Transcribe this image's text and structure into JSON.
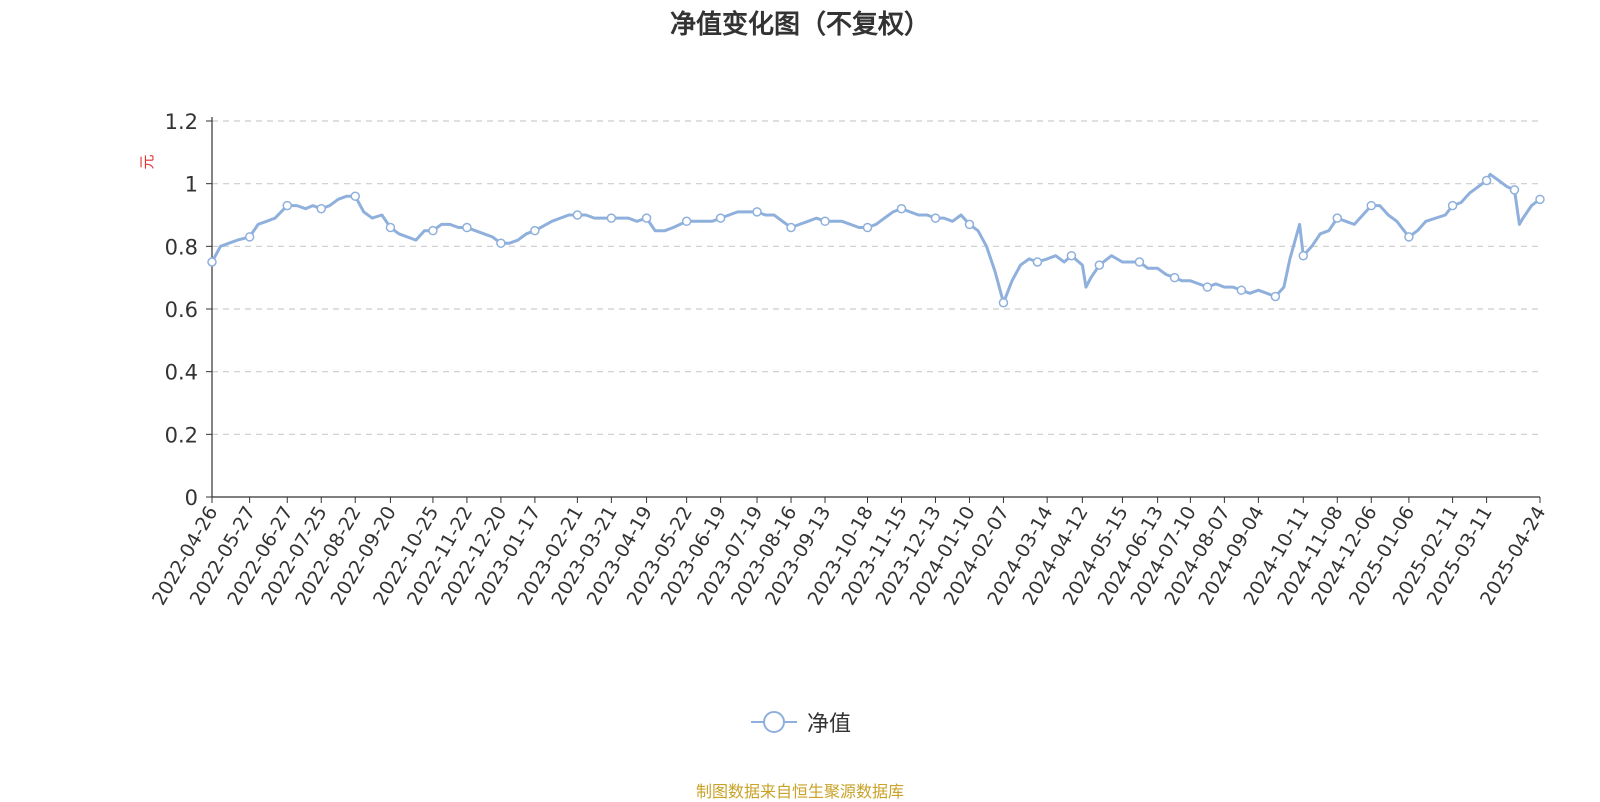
{
  "chart_data": {
    "type": "line",
    "title": "净值变化图（不复权）",
    "ylabel": "元",
    "ylim": [
      0,
      1.2
    ],
    "yticks": [
      "0",
      "0.2",
      "0.4",
      "0.6",
      "0.8",
      "1",
      "1.2"
    ],
    "x_labels": [
      "2022-04-26",
      "2022-05-27",
      "2022-06-27",
      "2022-07-25",
      "2022-08-22",
      "2022-09-20",
      "2022-10-25",
      "2022-11-22",
      "2022-12-20",
      "2023-01-17",
      "2023-02-21",
      "2023-03-21",
      "2023-04-19",
      "2023-05-22",
      "2023-06-19",
      "2023-07-19",
      "2023-08-16",
      "2023-09-13",
      "2023-10-18",
      "2023-11-15",
      "2023-12-13",
      "2024-01-10",
      "2024-02-07",
      "2024-03-14",
      "2024-04-12",
      "2024-05-15",
      "2024-06-13",
      "2024-07-10",
      "2024-08-07",
      "2024-09-04",
      "2024-10-11",
      "2024-11-08",
      "2024-12-06",
      "2025-01-06",
      "2025-02-11",
      "2025-03-11",
      "2025-04-24"
    ],
    "grid": true,
    "legend_position": "bottom-center",
    "series": [
      {
        "name": "净值",
        "color": "#8fb0dc",
        "points": [
          [
            "2022-04-26",
            0.75
          ],
          [
            "2022-05-03",
            0.8
          ],
          [
            "2022-05-10",
            0.81
          ],
          [
            "2022-05-17",
            0.82
          ],
          [
            "2022-05-27",
            0.83
          ],
          [
            "2022-06-03",
            0.87
          ],
          [
            "2022-06-10",
            0.88
          ],
          [
            "2022-06-17",
            0.89
          ],
          [
            "2022-06-27",
            0.93
          ],
          [
            "2022-07-05",
            0.93
          ],
          [
            "2022-07-12",
            0.92
          ],
          [
            "2022-07-18",
            0.93
          ],
          [
            "2022-07-25",
            0.92
          ],
          [
            "2022-08-01",
            0.93
          ],
          [
            "2022-08-08",
            0.95
          ],
          [
            "2022-08-15",
            0.96
          ],
          [
            "2022-08-22",
            0.96
          ],
          [
            "2022-08-29",
            0.91
          ],
          [
            "2022-09-05",
            0.89
          ],
          [
            "2022-09-13",
            0.9
          ],
          [
            "2022-09-20",
            0.86
          ],
          [
            "2022-09-27",
            0.84
          ],
          [
            "2022-10-11",
            0.82
          ],
          [
            "2022-10-18",
            0.85
          ],
          [
            "2022-10-25",
            0.85
          ],
          [
            "2022-11-01",
            0.87
          ],
          [
            "2022-11-08",
            0.87
          ],
          [
            "2022-11-15",
            0.86
          ],
          [
            "2022-11-22",
            0.86
          ],
          [
            "2022-11-29",
            0.85
          ],
          [
            "2022-12-06",
            0.84
          ],
          [
            "2022-12-13",
            0.83
          ],
          [
            "2022-12-20",
            0.81
          ],
          [
            "2022-12-27",
            0.81
          ],
          [
            "2023-01-03",
            0.82
          ],
          [
            "2023-01-10",
            0.84
          ],
          [
            "2023-01-17",
            0.85
          ],
          [
            "2023-01-31",
            0.88
          ],
          [
            "2023-02-07",
            0.89
          ],
          [
            "2023-02-14",
            0.9
          ],
          [
            "2023-02-21",
            0.9
          ],
          [
            "2023-02-28",
            0.9
          ],
          [
            "2023-03-07",
            0.89
          ],
          [
            "2023-03-14",
            0.89
          ],
          [
            "2023-03-21",
            0.89
          ],
          [
            "2023-03-28",
            0.89
          ],
          [
            "2023-04-04",
            0.89
          ],
          [
            "2023-04-11",
            0.88
          ],
          [
            "2023-04-19",
            0.89
          ],
          [
            "2023-04-26",
            0.85
          ],
          [
            "2023-05-04",
            0.85
          ],
          [
            "2023-05-11",
            0.86
          ],
          [
            "2023-05-22",
            0.88
          ],
          [
            "2023-05-29",
            0.88
          ],
          [
            "2023-06-05",
            0.88
          ],
          [
            "2023-06-12",
            0.88
          ],
          [
            "2023-06-19",
            0.89
          ],
          [
            "2023-06-26",
            0.9
          ],
          [
            "2023-07-03",
            0.91
          ],
          [
            "2023-07-10",
            0.91
          ],
          [
            "2023-07-19",
            0.91
          ],
          [
            "2023-07-26",
            0.9
          ],
          [
            "2023-08-02",
            0.9
          ],
          [
            "2023-08-09",
            0.88
          ],
          [
            "2023-08-16",
            0.86
          ],
          [
            "2023-08-23",
            0.87
          ],
          [
            "2023-08-30",
            0.88
          ],
          [
            "2023-09-06",
            0.89
          ],
          [
            "2023-09-13",
            0.88
          ],
          [
            "2023-09-20",
            0.88
          ],
          [
            "2023-09-27",
            0.88
          ],
          [
            "2023-10-11",
            0.86
          ],
          [
            "2023-10-18",
            0.86
          ],
          [
            "2023-10-25",
            0.87
          ],
          [
            "2023-11-01",
            0.89
          ],
          [
            "2023-11-08",
            0.91
          ],
          [
            "2023-11-15",
            0.92
          ],
          [
            "2023-11-22",
            0.91
          ],
          [
            "2023-11-29",
            0.9
          ],
          [
            "2023-12-06",
            0.9
          ],
          [
            "2023-12-13",
            0.89
          ],
          [
            "2023-12-20",
            0.89
          ],
          [
            "2023-12-27",
            0.88
          ],
          [
            "2024-01-03",
            0.9
          ],
          [
            "2024-01-10",
            0.87
          ],
          [
            "2024-01-17",
            0.85
          ],
          [
            "2024-01-24",
            0.8
          ],
          [
            "2024-01-31",
            0.72
          ],
          [
            "2024-02-07",
            0.62
          ],
          [
            "2024-02-14",
            0.69
          ],
          [
            "2024-02-21",
            0.74
          ],
          [
            "2024-02-28",
            0.76
          ],
          [
            "2024-03-06",
            0.75
          ],
          [
            "2024-03-14",
            0.76
          ],
          [
            "2024-03-21",
            0.77
          ],
          [
            "2024-03-28",
            0.75
          ],
          [
            "2024-04-03",
            0.77
          ],
          [
            "2024-04-12",
            0.74
          ],
          [
            "2024-04-15",
            0.67
          ],
          [
            "2024-04-19",
            0.7
          ],
          [
            "2024-04-26",
            0.74
          ],
          [
            "2024-05-06",
            0.77
          ],
          [
            "2024-05-15",
            0.75
          ],
          [
            "2024-05-22",
            0.75
          ],
          [
            "2024-05-29",
            0.75
          ],
          [
            "2024-06-05",
            0.73
          ],
          [
            "2024-06-13",
            0.73
          ],
          [
            "2024-06-20",
            0.71
          ],
          [
            "2024-06-27",
            0.7
          ],
          [
            "2024-07-03",
            0.69
          ],
          [
            "2024-07-10",
            0.69
          ],
          [
            "2024-07-17",
            0.68
          ],
          [
            "2024-07-24",
            0.67
          ],
          [
            "2024-07-31",
            0.68
          ],
          [
            "2024-08-07",
            0.67
          ],
          [
            "2024-08-14",
            0.67
          ],
          [
            "2024-08-21",
            0.66
          ],
          [
            "2024-08-28",
            0.65
          ],
          [
            "2024-09-04",
            0.66
          ],
          [
            "2024-09-11",
            0.65
          ],
          [
            "2024-09-18",
            0.64
          ],
          [
            "2024-09-25",
            0.67
          ],
          [
            "2024-09-30",
            0.76
          ],
          [
            "2024-10-08",
            0.87
          ],
          [
            "2024-10-11",
            0.77
          ],
          [
            "2024-10-18",
            0.8
          ],
          [
            "2024-10-25",
            0.84
          ],
          [
            "2024-11-01",
            0.85
          ],
          [
            "2024-11-08",
            0.89
          ],
          [
            "2024-11-15",
            0.88
          ],
          [
            "2024-11-22",
            0.87
          ],
          [
            "2024-11-29",
            0.9
          ],
          [
            "2024-12-06",
            0.93
          ],
          [
            "2024-12-13",
            0.93
          ],
          [
            "2024-12-20",
            0.9
          ],
          [
            "2024-12-27",
            0.88
          ],
          [
            "2025-01-06",
            0.83
          ],
          [
            "2025-01-13",
            0.85
          ],
          [
            "2025-01-20",
            0.88
          ],
          [
            "2025-02-05",
            0.9
          ],
          [
            "2025-02-11",
            0.93
          ],
          [
            "2025-02-18",
            0.94
          ],
          [
            "2025-02-25",
            0.97
          ],
          [
            "2025-03-04",
            0.99
          ],
          [
            "2025-03-11",
            1.01
          ],
          [
            "2025-03-14",
            1.03
          ],
          [
            "2025-03-21",
            1.01
          ],
          [
            "2025-03-28",
            0.99
          ],
          [
            "2025-04-03",
            0.98
          ],
          [
            "2025-04-07",
            0.87
          ],
          [
            "2025-04-10",
            0.89
          ],
          [
            "2025-04-17",
            0.93
          ],
          [
            "2025-04-24",
            0.95
          ]
        ]
      }
    ]
  },
  "footer": {
    "source": "制图数据来自恒生聚源数据库"
  }
}
